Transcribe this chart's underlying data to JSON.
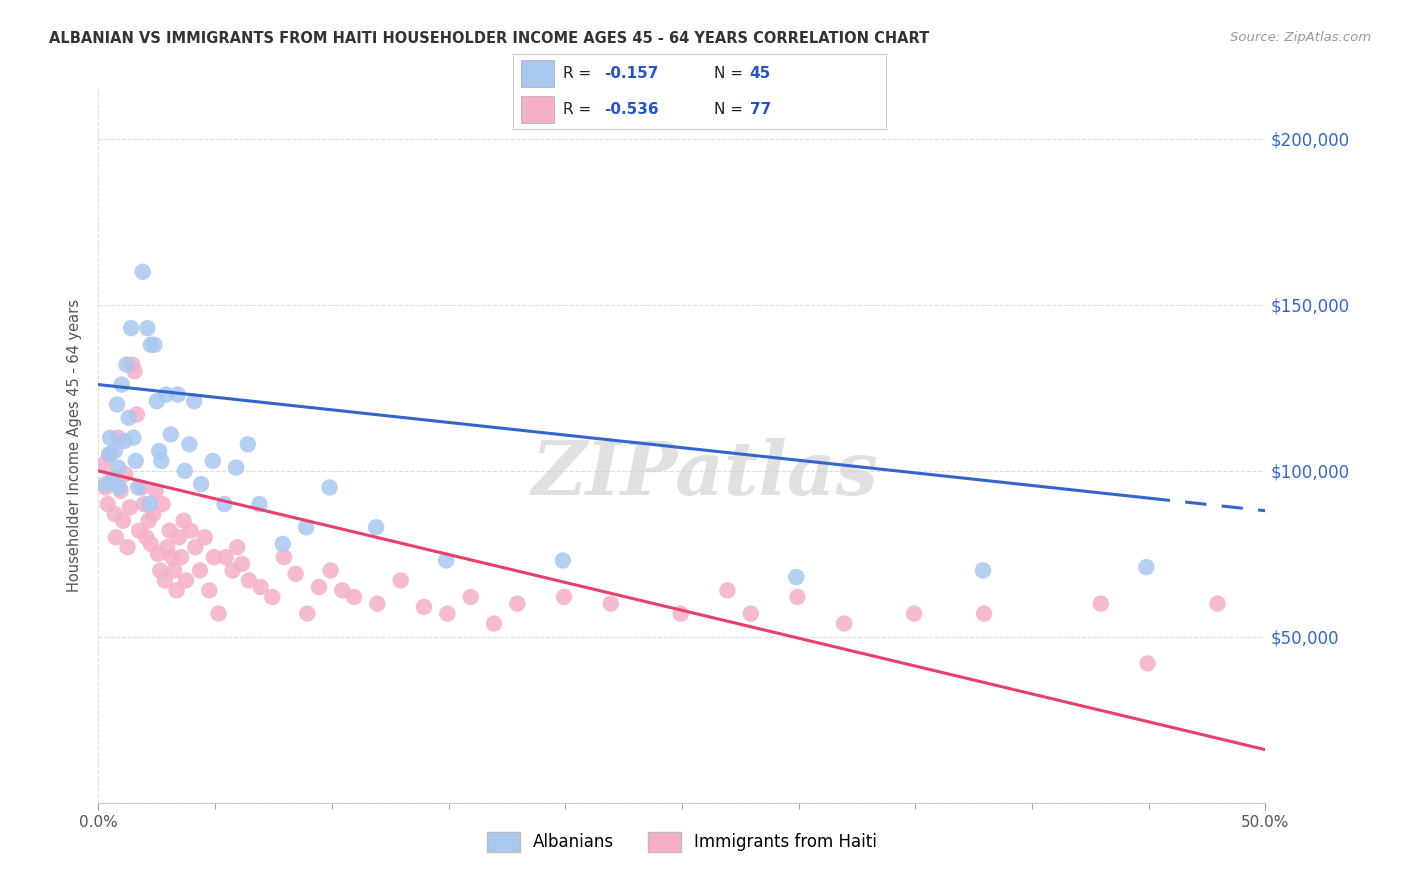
{
  "title": "ALBANIAN VS IMMIGRANTS FROM HAITI HOUSEHOLDER INCOME AGES 45 - 64 YEARS CORRELATION CHART",
  "source": "Source: ZipAtlas.com",
  "ylabel": "Householder Income Ages 45 - 64 years",
  "y_ticks": [
    0,
    50000,
    100000,
    150000,
    200000
  ],
  "y_tick_labels": [
    "",
    "$50,000",
    "$100,000",
    "$150,000",
    "$200,000"
  ],
  "x_range": [
    0,
    50
  ],
  "y_range": [
    0,
    215000
  ],
  "blue_color": "#a8c8f0",
  "pink_color": "#f5b0c8",
  "blue_line_color": "#3366cc",
  "pink_line_color": "#e8406a",
  "blue_line_y0": 126000,
  "blue_line_y50": 88000,
  "pink_line_y0": 100000,
  "pink_line_y50": 16000,
  "blue_dashed_from_x": 45,
  "watermark": "ZIPatlas",
  "background_color": "#ffffff",
  "grid_color": "#dddddd",
  "blue_scatter": [
    [
      0.3,
      96000
    ],
    [
      0.45,
      105000
    ],
    [
      0.5,
      110000
    ],
    [
      0.6,
      97000
    ],
    [
      0.7,
      106000
    ],
    [
      0.8,
      120000
    ],
    [
      0.85,
      101000
    ],
    [
      0.9,
      95000
    ],
    [
      1.0,
      126000
    ],
    [
      1.1,
      109000
    ],
    [
      1.2,
      132000
    ],
    [
      1.3,
      116000
    ],
    [
      1.4,
      143000
    ],
    [
      1.5,
      110000
    ],
    [
      1.6,
      103000
    ],
    [
      1.7,
      95000
    ],
    [
      1.9,
      160000
    ],
    [
      2.1,
      143000
    ],
    [
      2.2,
      90000
    ],
    [
      2.25,
      138000
    ],
    [
      2.4,
      138000
    ],
    [
      2.5,
      121000
    ],
    [
      2.6,
      106000
    ],
    [
      2.7,
      103000
    ],
    [
      2.9,
      123000
    ],
    [
      3.1,
      111000
    ],
    [
      3.4,
      123000
    ],
    [
      3.7,
      100000
    ],
    [
      3.9,
      108000
    ],
    [
      4.1,
      121000
    ],
    [
      4.4,
      96000
    ],
    [
      4.9,
      103000
    ],
    [
      5.4,
      90000
    ],
    [
      5.9,
      101000
    ],
    [
      6.4,
      108000
    ],
    [
      6.9,
      90000
    ],
    [
      7.9,
      78000
    ],
    [
      8.9,
      83000
    ],
    [
      9.9,
      95000
    ],
    [
      11.9,
      83000
    ],
    [
      14.9,
      73000
    ],
    [
      19.9,
      73000
    ],
    [
      29.9,
      68000
    ],
    [
      37.9,
      70000
    ],
    [
      44.9,
      71000
    ]
  ],
  "pink_scatter": [
    [
      0.2,
      102000
    ],
    [
      0.3,
      95000
    ],
    [
      0.4,
      90000
    ],
    [
      0.5,
      105000
    ],
    [
      0.6,
      98000
    ],
    [
      0.7,
      87000
    ],
    [
      0.75,
      80000
    ],
    [
      0.85,
      110000
    ],
    [
      0.95,
      94000
    ],
    [
      1.05,
      85000
    ],
    [
      1.15,
      99000
    ],
    [
      1.25,
      77000
    ],
    [
      1.35,
      89000
    ],
    [
      1.45,
      132000
    ],
    [
      1.55,
      130000
    ],
    [
      1.65,
      117000
    ],
    [
      1.75,
      82000
    ],
    [
      1.85,
      95000
    ],
    [
      1.95,
      90000
    ],
    [
      2.05,
      80000
    ],
    [
      2.15,
      85000
    ],
    [
      2.25,
      78000
    ],
    [
      2.35,
      87000
    ],
    [
      2.45,
      94000
    ],
    [
      2.55,
      75000
    ],
    [
      2.65,
      70000
    ],
    [
      2.75,
      90000
    ],
    [
      2.85,
      67000
    ],
    [
      2.95,
      77000
    ],
    [
      3.05,
      82000
    ],
    [
      3.15,
      74000
    ],
    [
      3.25,
      70000
    ],
    [
      3.35,
      64000
    ],
    [
      3.45,
      80000
    ],
    [
      3.55,
      74000
    ],
    [
      3.65,
      85000
    ],
    [
      3.75,
      67000
    ],
    [
      3.95,
      82000
    ],
    [
      4.15,
      77000
    ],
    [
      4.35,
      70000
    ],
    [
      4.55,
      80000
    ],
    [
      4.75,
      64000
    ],
    [
      4.95,
      74000
    ],
    [
      5.15,
      57000
    ],
    [
      5.45,
      74000
    ],
    [
      5.75,
      70000
    ],
    [
      5.95,
      77000
    ],
    [
      6.15,
      72000
    ],
    [
      6.45,
      67000
    ],
    [
      6.95,
      65000
    ],
    [
      7.45,
      62000
    ],
    [
      7.95,
      74000
    ],
    [
      8.45,
      69000
    ],
    [
      8.95,
      57000
    ],
    [
      9.45,
      65000
    ],
    [
      9.95,
      70000
    ],
    [
      10.45,
      64000
    ],
    [
      10.95,
      62000
    ],
    [
      11.95,
      60000
    ],
    [
      12.95,
      67000
    ],
    [
      13.95,
      59000
    ],
    [
      14.95,
      57000
    ],
    [
      15.95,
      62000
    ],
    [
      16.95,
      54000
    ],
    [
      17.95,
      60000
    ],
    [
      19.95,
      62000
    ],
    [
      21.95,
      60000
    ],
    [
      24.95,
      57000
    ],
    [
      26.95,
      64000
    ],
    [
      27.95,
      57000
    ],
    [
      29.95,
      62000
    ],
    [
      31.95,
      54000
    ],
    [
      34.95,
      57000
    ],
    [
      37.95,
      57000
    ],
    [
      42.95,
      60000
    ],
    [
      44.95,
      42000
    ],
    [
      47.95,
      60000
    ]
  ]
}
